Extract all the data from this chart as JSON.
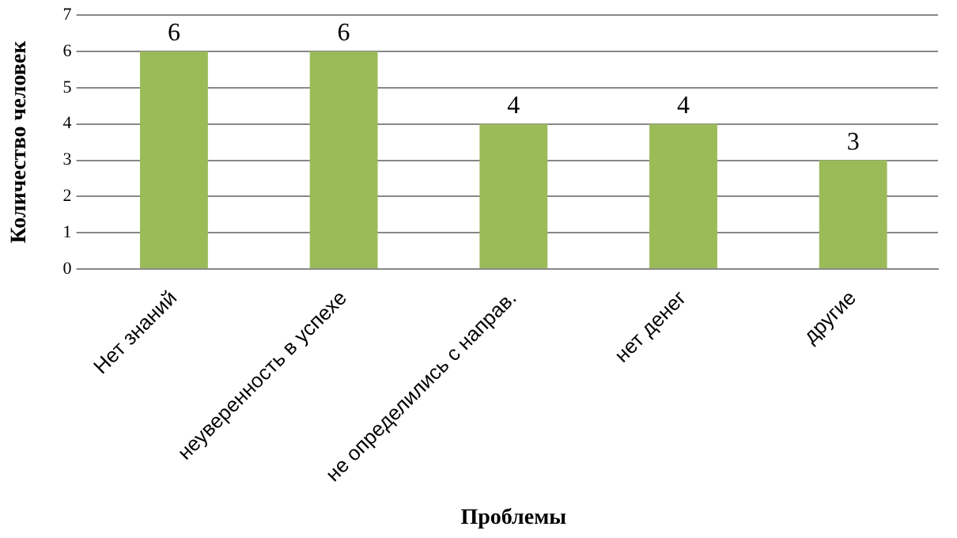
{
  "chart_data": {
    "type": "bar",
    "xlabel": "Проблемы",
    "ylabel": "Количество человек",
    "categories": [
      "Нет знаний",
      "неуверенность в успехе",
      "не определились с направ.",
      "нет денег",
      "другие"
    ],
    "values": [
      6,
      6,
      4,
      4,
      3
    ],
    "color": "#9bbb59",
    "ylim": [
      0,
      7
    ],
    "yticks": [
      0,
      1,
      2,
      3,
      4,
      5,
      6,
      7
    ],
    "grid": "y",
    "data_labels": true,
    "legend": false
  }
}
